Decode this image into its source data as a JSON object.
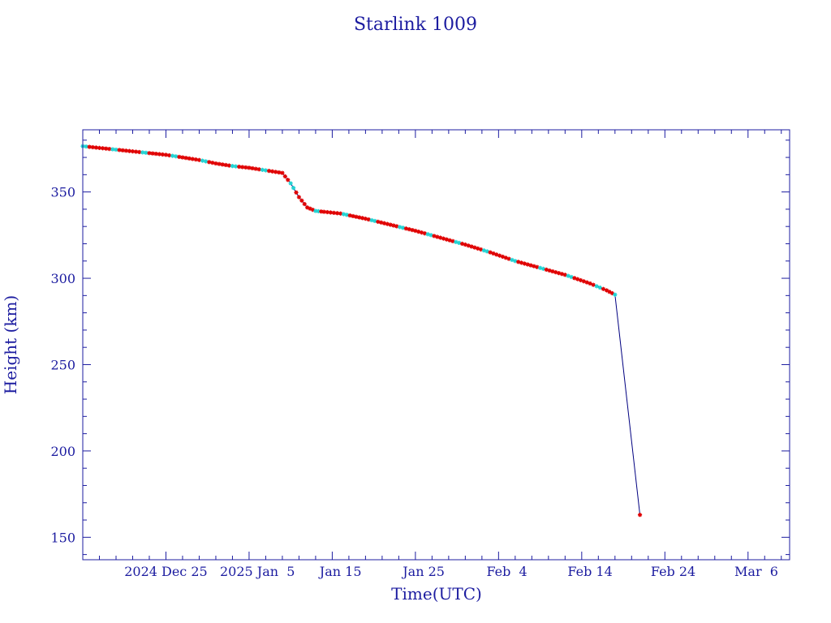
{
  "chart_data": {
    "type": "line",
    "title": "Starlink 1009",
    "xlabel": "Time(UTC)",
    "ylabel": "Height (km)",
    "x_tick_labels": [
      "2024 Dec 25",
      "2025 Jan  5",
      "Jan 15",
      "Jan 25",
      "Feb  4",
      "Feb 14",
      "Feb 24",
      "Mar  6"
    ],
    "x_tick_dates": [
      "2024-12-25",
      "2025-01-05",
      "2025-01-15",
      "2025-01-25",
      "2025-02-04",
      "2025-02-14",
      "2025-02-24",
      "2025-03-06"
    ],
    "xlim": [
      "2024-12-15",
      "2025-03-10"
    ],
    "y_ticks": [
      150,
      200,
      250,
      300,
      350
    ],
    "ylim": [
      137,
      386
    ],
    "grid": false,
    "colors": {
      "axis": "#1c1ca0",
      "line": "#000080",
      "marker_primary": "#e00000",
      "marker_secondary": "#22d3d3"
    },
    "series": [
      {
        "x": [
          "2024-12-15",
          "2024-12-17",
          "2024-12-19",
          "2024-12-21",
          "2024-12-23",
          "2024-12-25",
          "2024-12-27",
          "2024-12-29",
          "2024-12-31",
          "2025-01-02",
          "2025-01-04",
          "2025-01-06",
          "2025-01-08",
          "2025-01-09",
          "2025-01-10",
          "2025-01-11",
          "2025-01-12",
          "2025-01-13",
          "2025-01-15",
          "2025-01-18",
          "2025-01-21",
          "2025-01-24",
          "2025-01-27",
          "2025-01-30",
          "2025-02-02",
          "2025-02-05",
          "2025-02-08",
          "2025-02-11",
          "2025-02-14",
          "2025-02-16",
          "2025-02-17",
          "2025-02-20"
        ],
        "values": [
          376.5,
          375.5,
          374.5,
          373.5,
          372.5,
          371.5,
          370,
          368.5,
          366.5,
          365,
          364,
          362.5,
          361,
          355,
          347,
          341,
          339,
          338.5,
          337.5,
          334.5,
          331,
          327.5,
          323.5,
          319.5,
          315,
          310,
          306,
          302,
          297,
          293,
          290.5,
          163
        ]
      }
    ]
  }
}
